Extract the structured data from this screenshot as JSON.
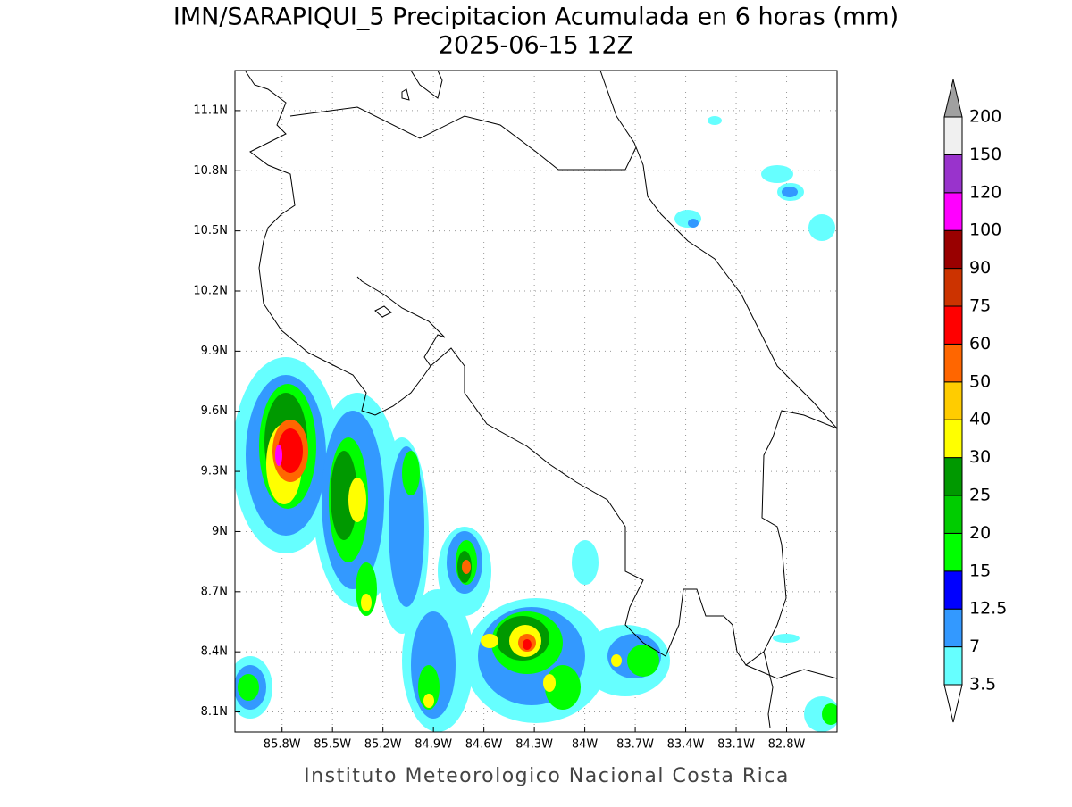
{
  "chart_data": {
    "type": "map",
    "title": "IMN/SARAPIQUI_5 Precipitacion Acumulada en 6 horas (mm)",
    "subtitle": "2025-06-15 12Z",
    "footer": "Instituto Meteorologico Nacional Costa Rica",
    "xlim": [
      -86.08,
      -82.5
    ],
    "ylim": [
      8.0,
      11.3
    ],
    "xticks": [
      {
        "value": -85.8,
        "label": "85.8W"
      },
      {
        "value": -85.5,
        "label": "85.5W"
      },
      {
        "value": -85.2,
        "label": "85.2W"
      },
      {
        "value": -84.9,
        "label": "84.9W"
      },
      {
        "value": -84.6,
        "label": "84.6W"
      },
      {
        "value": -84.3,
        "label": "84.3W"
      },
      {
        "value": -84.0,
        "label": "84W"
      },
      {
        "value": -83.7,
        "label": "83.7W"
      },
      {
        "value": -83.4,
        "label": "83.4W"
      },
      {
        "value": -83.1,
        "label": "83.1W"
      },
      {
        "value": -82.8,
        "label": "82.8W"
      }
    ],
    "yticks": [
      {
        "value": 8.1,
        "label": "8.1N"
      },
      {
        "value": 8.4,
        "label": "8.4N"
      },
      {
        "value": 8.7,
        "label": "8.7N"
      },
      {
        "value": 9.0,
        "label": "9N"
      },
      {
        "value": 9.3,
        "label": "9.3N"
      },
      {
        "value": 9.6,
        "label": "9.6N"
      },
      {
        "value": 9.9,
        "label": "9.9N"
      },
      {
        "value": 10.2,
        "label": "10.2N"
      },
      {
        "value": 10.5,
        "label": "10.5N"
      },
      {
        "value": 10.8,
        "label": "10.8N"
      },
      {
        "value": 11.1,
        "label": "11.1N"
      }
    ],
    "grid": true,
    "colorbar": {
      "levels": [
        3.5,
        7,
        12.5,
        15,
        20,
        25,
        30,
        40,
        50,
        60,
        75,
        90,
        100,
        120,
        150,
        200
      ],
      "colors": [
        "#66ffff",
        "#3399ff",
        "#0000ff",
        "#00ff00",
        "#00cc00",
        "#009900",
        "#ffff00",
        "#ffcc00",
        "#ff6600",
        "#ff0000",
        "#cc3300",
        "#990000",
        "#ff00ff",
        "#9933cc",
        "#f0f0f0"
      ],
      "over_color": "#a0a0a0",
      "under_color": "#ffffff"
    }
  }
}
